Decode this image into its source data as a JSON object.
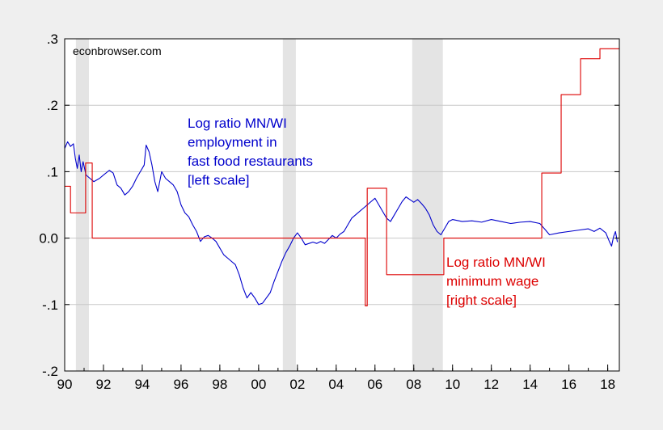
{
  "watermark": "econbrowser.com",
  "chart_data": {
    "type": "line",
    "title": "",
    "xlabel": "",
    "ylabel": "",
    "xlim": [
      1990.0,
      2018.6
    ],
    "ylim": [
      -0.2,
      0.3
    ],
    "y_ticks": [
      ".3",
      ".2",
      ".1",
      "0.0",
      "-.1",
      "-.2"
    ],
    "y_tick_values": [
      0.3,
      0.2,
      0.1,
      0.0,
      -0.1,
      -0.2
    ],
    "x_ticks": [
      "90",
      "92",
      "94",
      "96",
      "98",
      "00",
      "02",
      "04",
      "06",
      "08",
      "10",
      "12",
      "14",
      "16",
      "18"
    ],
    "x_tick_values": [
      1990,
      1992,
      1994,
      1996,
      1998,
      2000,
      2002,
      2004,
      2006,
      2008,
      2010,
      2012,
      2014,
      2016,
      2018
    ],
    "grid": "horizontal",
    "recessions": [
      [
        1990.58,
        1991.25
      ],
      [
        2001.25,
        2001.92
      ],
      [
        2007.92,
        2009.5
      ]
    ],
    "series": [
      {
        "name": "employment",
        "color": "#0000cc",
        "points": [
          [
            1990.0,
            0.135
          ],
          [
            1990.15,
            0.145
          ],
          [
            1990.3,
            0.138
          ],
          [
            1990.45,
            0.142
          ],
          [
            1990.55,
            0.12
          ],
          [
            1990.65,
            0.105
          ],
          [
            1990.75,
            0.125
          ],
          [
            1990.85,
            0.1
          ],
          [
            1990.95,
            0.115
          ],
          [
            1991.1,
            0.095
          ],
          [
            1991.3,
            0.09
          ],
          [
            1991.5,
            0.085
          ],
          [
            1991.8,
            0.09
          ],
          [
            1992.0,
            0.095
          ],
          [
            1992.3,
            0.102
          ],
          [
            1992.5,
            0.098
          ],
          [
            1992.7,
            0.08
          ],
          [
            1992.9,
            0.075
          ],
          [
            1993.1,
            0.065
          ],
          [
            1993.3,
            0.07
          ],
          [
            1993.5,
            0.078
          ],
          [
            1993.7,
            0.09
          ],
          [
            1993.9,
            0.1
          ],
          [
            1994.1,
            0.11
          ],
          [
            1994.2,
            0.14
          ],
          [
            1994.35,
            0.13
          ],
          [
            1994.5,
            0.11
          ],
          [
            1994.65,
            0.085
          ],
          [
            1994.8,
            0.07
          ],
          [
            1995.0,
            0.1
          ],
          [
            1995.2,
            0.09
          ],
          [
            1995.4,
            0.085
          ],
          [
            1995.6,
            0.08
          ],
          [
            1995.8,
            0.07
          ],
          [
            1996.0,
            0.05
          ],
          [
            1996.2,
            0.038
          ],
          [
            1996.4,
            0.032
          ],
          [
            1996.6,
            0.02
          ],
          [
            1996.8,
            0.01
          ],
          [
            1997.0,
            -0.005
          ],
          [
            1997.2,
            0.002
          ],
          [
            1997.4,
            0.004
          ],
          [
            1997.6,
            0.0
          ],
          [
            1997.8,
            -0.005
          ],
          [
            1998.0,
            -0.015
          ],
          [
            1998.2,
            -0.025
          ],
          [
            1998.4,
            -0.03
          ],
          [
            1998.6,
            -0.035
          ],
          [
            1998.8,
            -0.04
          ],
          [
            1999.0,
            -0.055
          ],
          [
            1999.2,
            -0.075
          ],
          [
            1999.4,
            -0.09
          ],
          [
            1999.6,
            -0.082
          ],
          [
            1999.8,
            -0.09
          ],
          [
            2000.0,
            -0.1
          ],
          [
            2000.2,
            -0.098
          ],
          [
            2000.4,
            -0.09
          ],
          [
            2000.6,
            -0.082
          ],
          [
            2000.8,
            -0.065
          ],
          [
            2001.0,
            -0.05
          ],
          [
            2001.2,
            -0.035
          ],
          [
            2001.4,
            -0.022
          ],
          [
            2001.6,
            -0.012
          ],
          [
            2001.8,
            0.0
          ],
          [
            2002.0,
            0.008
          ],
          [
            2002.2,
            0.0
          ],
          [
            2002.4,
            -0.01
          ],
          [
            2002.6,
            -0.008
          ],
          [
            2002.8,
            -0.006
          ],
          [
            2003.0,
            -0.008
          ],
          [
            2003.2,
            -0.005
          ],
          [
            2003.4,
            -0.008
          ],
          [
            2003.6,
            -0.002
          ],
          [
            2003.8,
            0.004
          ],
          [
            2004.0,
            0.0
          ],
          [
            2004.2,
            0.006
          ],
          [
            2004.4,
            0.01
          ],
          [
            2004.6,
            0.02
          ],
          [
            2004.8,
            0.03
          ],
          [
            2005.0,
            0.035
          ],
          [
            2005.2,
            0.04
          ],
          [
            2005.4,
            0.045
          ],
          [
            2005.6,
            0.05
          ],
          [
            2005.8,
            0.055
          ],
          [
            2006.0,
            0.06
          ],
          [
            2006.2,
            0.05
          ],
          [
            2006.4,
            0.04
          ],
          [
            2006.6,
            0.03
          ],
          [
            2006.8,
            0.025
          ],
          [
            2007.0,
            0.035
          ],
          [
            2007.2,
            0.045
          ],
          [
            2007.4,
            0.055
          ],
          [
            2007.6,
            0.062
          ],
          [
            2007.8,
            0.058
          ],
          [
            2008.0,
            0.054
          ],
          [
            2008.2,
            0.058
          ],
          [
            2008.4,
            0.052
          ],
          [
            2008.6,
            0.045
          ],
          [
            2008.8,
            0.035
          ],
          [
            2009.0,
            0.02
          ],
          [
            2009.2,
            0.01
          ],
          [
            2009.4,
            0.005
          ],
          [
            2009.6,
            0.015
          ],
          [
            2009.8,
            0.025
          ],
          [
            2010.0,
            0.028
          ],
          [
            2010.5,
            0.025
          ],
          [
            2011.0,
            0.026
          ],
          [
            2011.5,
            0.024
          ],
          [
            2012.0,
            0.028
          ],
          [
            2012.5,
            0.025
          ],
          [
            2013.0,
            0.022
          ],
          [
            2013.5,
            0.024
          ],
          [
            2014.0,
            0.025
          ],
          [
            2014.5,
            0.022
          ],
          [
            2014.8,
            0.012
          ],
          [
            2015.0,
            0.005
          ],
          [
            2015.5,
            0.008
          ],
          [
            2016.0,
            0.01
          ],
          [
            2016.5,
            0.012
          ],
          [
            2017.0,
            0.014
          ],
          [
            2017.3,
            0.01
          ],
          [
            2017.6,
            0.015
          ],
          [
            2017.9,
            0.008
          ],
          [
            2018.1,
            -0.006
          ],
          [
            2018.2,
            -0.012
          ],
          [
            2018.3,
            0.002
          ],
          [
            2018.4,
            0.01
          ],
          [
            2018.5,
            -0.006
          ]
        ]
      },
      {
        "name": "minimum wage",
        "color": "#dd0000",
        "step": true,
        "points": [
          [
            1990.0,
            0.078
          ],
          [
            1990.3,
            0.038
          ],
          [
            1991.08,
            0.113
          ],
          [
            1991.42,
            0.0
          ],
          [
            2005.5,
            -0.102
          ],
          [
            2005.6,
            0.075
          ],
          [
            2006.6,
            -0.055
          ],
          [
            2009.55,
            0.0
          ],
          [
            2014.6,
            0.098
          ],
          [
            2015.6,
            0.216
          ],
          [
            2016.6,
            0.27
          ],
          [
            2017.6,
            0.285
          ],
          [
            2018.6,
            0.285
          ]
        ]
      }
    ],
    "annotations": [
      {
        "series": "employment",
        "color": "#0000cc",
        "lines": [
          "Log ratio MN/WI",
          "employment in",
          "fast food restaurants",
          "[left scale]"
        ]
      },
      {
        "series": "minimum wage",
        "color": "#dd0000",
        "lines": [
          "Log ratio MN/WI",
          "minimum wage",
          "[right scale]"
        ]
      }
    ]
  }
}
